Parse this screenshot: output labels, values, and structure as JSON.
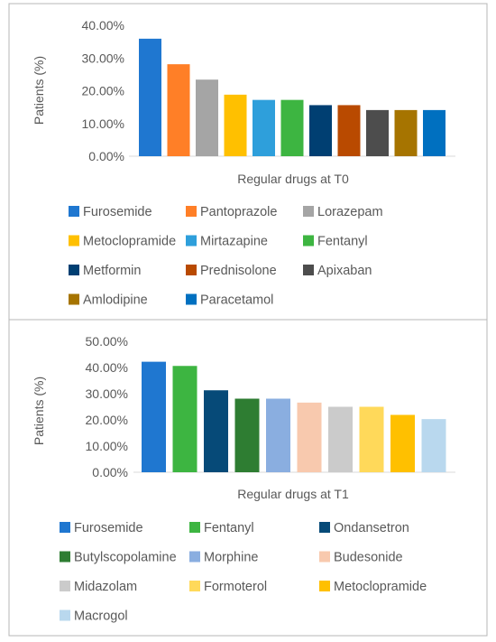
{
  "chart_data": [
    {
      "type": "bar",
      "title": "",
      "xlabel": "Regular drugs at T0",
      "ylabel": "Patients (%)",
      "ylim": [
        0,
        40
      ],
      "yticks": [
        "0.00%",
        "10.00%",
        "20.00%",
        "30.00%",
        "40.00%"
      ],
      "grid": false,
      "legend_position": "bottom",
      "categories": [
        "Furosemide",
        "Pantoprazole",
        "Lorazepam",
        "Metoclopramide",
        "Mirtazapine",
        "Fentanyl",
        "Metformin",
        "Prednisolone",
        "Apixaban",
        "Amlodipine",
        "Paracetamol"
      ],
      "values": [
        35.9,
        28.1,
        23.4,
        18.8,
        17.2,
        17.2,
        15.6,
        15.6,
        14.1,
        14.1,
        14.1
      ],
      "colors": [
        "#1f77d0",
        "#ff7f27",
        "#a5a5a5",
        "#ffc000",
        "#2e9fdb",
        "#3db541",
        "#003f72",
        "#b94a00",
        "#4d4d4d",
        "#a67400",
        "#0070c0"
      ]
    },
    {
      "type": "bar",
      "title": "",
      "xlabel": "Regular drugs at T1",
      "ylabel": "Patients (%)",
      "ylim": [
        0,
        50
      ],
      "yticks": [
        "0.00%",
        "10.00%",
        "20.00%",
        "30.00%",
        "40.00%",
        "50.00%"
      ],
      "grid": false,
      "legend_position": "bottom",
      "categories": [
        "Furosemide",
        "Fentanyl",
        "Ondansetron",
        "Butylscopolamine",
        "Morphine",
        "Budesonide",
        "Midazolam",
        "Formoterol",
        "Metoclopramide",
        "Macrogol"
      ],
      "values": [
        42.2,
        40.6,
        31.3,
        28.1,
        28.1,
        26.6,
        25.0,
        25.0,
        21.9,
        20.3
      ],
      "colors": [
        "#1f77d0",
        "#3db541",
        "#064a78",
        "#2e7d32",
        "#8aaee0",
        "#f8c9ae",
        "#cbcbcb",
        "#ffd95a",
        "#ffc000",
        "#b9d8ee"
      ]
    }
  ]
}
